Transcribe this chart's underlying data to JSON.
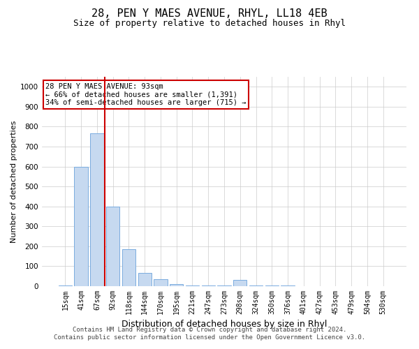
{
  "title": "28, PEN Y MAES AVENUE, RHYL, LL18 4EB",
  "subtitle": "Size of property relative to detached houses in Rhyl",
  "xlabel": "Distribution of detached houses by size in Rhyl",
  "ylabel": "Number of detached properties",
  "categories": [
    "15sqm",
    "41sqm",
    "67sqm",
    "92sqm",
    "118sqm",
    "144sqm",
    "170sqm",
    "195sqm",
    "221sqm",
    "247sqm",
    "273sqm",
    "298sqm",
    "324sqm",
    "350sqm",
    "376sqm",
    "401sqm",
    "427sqm",
    "453sqm",
    "479sqm",
    "504sqm",
    "530sqm"
  ],
  "values": [
    5,
    600,
    765,
    400,
    185,
    65,
    35,
    10,
    5,
    5,
    5,
    30,
    2,
    2,
    2,
    1,
    1,
    1,
    1,
    1,
    1
  ],
  "bar_color": "#c6d9f0",
  "bar_edgecolor": "#7aacdf",
  "vline_color": "#cc0000",
  "vline_x_index": 2.5,
  "annotation_text": "28 PEN Y MAES AVENUE: 93sqm\n← 66% of detached houses are smaller (1,391)\n34% of semi-detached houses are larger (715) →",
  "annotation_box_color": "#ffffff",
  "annotation_box_edgecolor": "#cc0000",
  "ylim": [
    0,
    1050
  ],
  "yticks": [
    0,
    100,
    200,
    300,
    400,
    500,
    600,
    700,
    800,
    900,
    1000
  ],
  "footnote": "Contains HM Land Registry data © Crown copyright and database right 2024.\nContains public sector information licensed under the Open Government Licence v3.0.",
  "bg_color": "#ffffff",
  "grid_color": "#cccccc",
  "title_fontsize": 11,
  "subtitle_fontsize": 9,
  "xlabel_fontsize": 9,
  "ylabel_fontsize": 8,
  "tick_fontsize": 7,
  "annotation_fontsize": 7.5,
  "footnote_fontsize": 6.5
}
